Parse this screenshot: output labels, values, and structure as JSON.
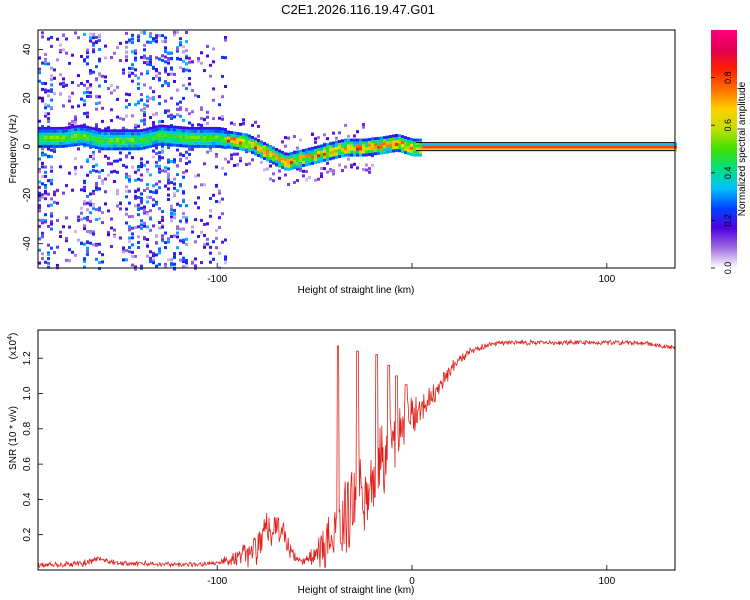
{
  "title": "C2E1.2026.116.19.47.G01",
  "chart_data": [
    {
      "type": "heatmap",
      "xlabel": "Height of straight line (km)",
      "ylabel": "Frequency (Hz)",
      "xlim": [
        -192,
        135
      ],
      "ylim": [
        -50,
        48
      ],
      "xticks": [
        -100,
        0,
        100
      ],
      "xtick_labels": [
        "-100",
        "",
        "100"
      ],
      "yticks": [
        40,
        20,
        0,
        -20,
        -40
      ],
      "ytick_labels": [
        "40",
        "20",
        "0",
        "-20",
        "-40"
      ],
      "colorbar": {
        "label": "Normalized spectral amplitude",
        "range": [
          0,
          1
        ],
        "ticks": [
          0.0,
          0.2,
          0.4,
          0.6,
          0.8
        ],
        "tick_labels": [
          "0.0",
          "0.2",
          "0.4",
          "0.6",
          "0.8"
        ],
        "colors": [
          "#ffffff",
          "#a070e0",
          "#5000e0",
          "#0040ff",
          "#00c0ff",
          "#00e080",
          "#40e000",
          "#c0e000",
          "#ffd000",
          "#ff7000",
          "#ff2000",
          "#e00050",
          "#ff0080"
        ]
      },
      "ridge": {
        "x": [
          -192,
          -180,
          -170,
          -160,
          -150,
          -140,
          -130,
          -115,
          -100,
          -85,
          -75,
          -65,
          -55,
          -45,
          -35,
          -25,
          -15,
          -8,
          0,
          20,
          135
        ],
        "freq": [
          4,
          4,
          5,
          3,
          3,
          3,
          5,
          4,
          4,
          2,
          -2,
          -6,
          -4,
          -2,
          0,
          0,
          1,
          2,
          0,
          0,
          0
        ]
      }
    },
    {
      "type": "line",
      "series_color": "#e0211b",
      "xlabel": "Height of straight line (km)",
      "ylabel": "SNR (10 * v/v)",
      "multiplier": "(x10",
      "multiplier_exp": "4",
      "xlim": [
        -192,
        135
      ],
      "ylim": [
        0,
        13600
      ],
      "xticks": [
        -100,
        0,
        100
      ],
      "xtick_labels": [
        "-100",
        "0",
        "100"
      ],
      "yticks": [
        2000,
        4000,
        6000,
        8000,
        10000,
        12000
      ],
      "ytick_labels": [
        "0.2",
        "0.4",
        "0.6",
        "0.8",
        "1.0",
        "1.2"
      ],
      "envelope": {
        "x": [
          -192,
          -170,
          -160,
          -150,
          -110,
          -100,
          -90,
          -80,
          -75,
          -70,
          -65,
          -60,
          -55,
          -50,
          -45,
          -40,
          -35,
          -30,
          -25,
          -20,
          -15,
          -10,
          -5,
          0,
          10,
          20,
          30,
          40,
          50,
          60,
          80,
          100,
          120,
          135
        ],
        "snr": [
          400,
          500,
          800,
          500,
          400,
          600,
          1000,
          2000,
          3200,
          3000,
          2400,
          900,
          700,
          1600,
          2200,
          4000,
          5000,
          5800,
          6500,
          7200,
          7800,
          8800,
          9200,
          9500,
          10500,
          11700,
          12600,
          12900,
          13000,
          13000,
          13000,
          13000,
          12950,
          12700
        ],
        "noise": [
          200,
          300,
          300,
          200,
          200,
          300,
          600,
          1500,
          1800,
          1200,
          1200,
          500,
          500,
          1200,
          2000,
          3000,
          3800,
          3800,
          3800,
          3600,
          3400,
          2800,
          2200,
          1600,
          1000,
          600,
          300,
          200,
          200,
          200,
          200,
          200,
          200,
          200
        ],
        "spikes": [
          {
            "x": -38,
            "snr": 12700
          },
          {
            "x": -28,
            "snr": 12400
          },
          {
            "x": -18,
            "snr": 12200
          },
          {
            "x": -12,
            "snr": 11600
          },
          {
            "x": -8,
            "snr": 11000
          },
          {
            "x": -3,
            "snr": 10500
          }
        ]
      }
    }
  ]
}
